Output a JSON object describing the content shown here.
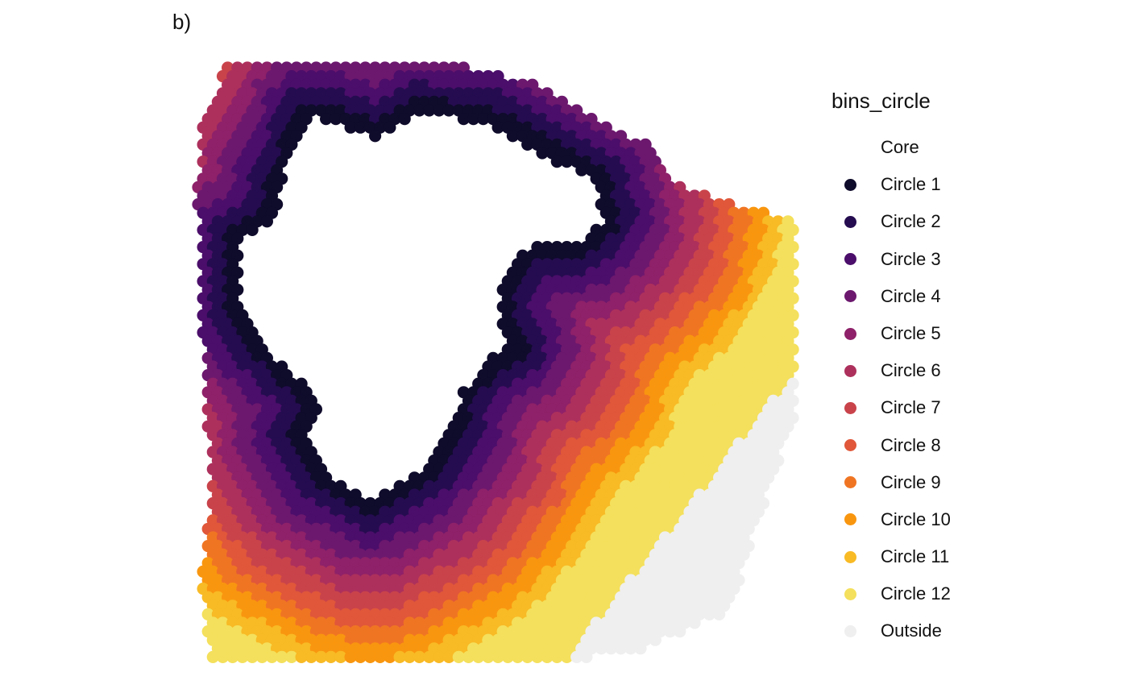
{
  "panel_tag": "b)",
  "chart_data": {
    "type": "scatter",
    "title": "",
    "xlabel": "",
    "ylabel": "",
    "grid": false,
    "axes_visible": false,
    "legend": {
      "title": "bins_circle",
      "placement": "right",
      "entries": [
        {
          "label": "Core",
          "color": "#ffffff"
        },
        {
          "label": "Circle 1",
          "color": "#0f0b2b"
        },
        {
          "label": "Circle 2",
          "color": "#250c50"
        },
        {
          "label": "Circle 3",
          "color": "#4b0e6a"
        },
        {
          "label": "Circle 4",
          "color": "#6c186e"
        },
        {
          "label": "Circle 5",
          "color": "#8e2169"
        },
        {
          "label": "Circle 6",
          "color": "#ad305c"
        },
        {
          "label": "Circle 7",
          "color": "#c9434b"
        },
        {
          "label": "Circle 8",
          "color": "#e0573a"
        },
        {
          "label": "Circle 9",
          "color": "#f07523"
        },
        {
          "label": "Circle 10",
          "color": "#f9960f"
        },
        {
          "label": "Circle 11",
          "color": "#f8ba25"
        },
        {
          "label": "Circle 12",
          "color": "#f4e05c"
        },
        {
          "label": "Outside",
          "color": "#efefef"
        }
      ]
    },
    "series": [
      {
        "name": "Core",
        "region": "core"
      },
      {
        "name": "Circle 1",
        "ring": 1
      },
      {
        "name": "Circle 2",
        "ring": 2
      },
      {
        "name": "Circle 3",
        "ring": 3
      },
      {
        "name": "Circle 4",
        "ring": 4
      },
      {
        "name": "Circle 5",
        "ring": 5
      },
      {
        "name": "Circle 6",
        "ring": 6
      },
      {
        "name": "Circle 7",
        "ring": 7
      },
      {
        "name": "Circle 8",
        "ring": 8
      },
      {
        "name": "Circle 9",
        "ring": 9
      },
      {
        "name": "Circle 10",
        "ring": 10
      },
      {
        "name": "Circle 11",
        "ring": 11
      },
      {
        "name": "Circle 12",
        "ring": 12
      },
      {
        "name": "Outside",
        "region": "outside"
      }
    ]
  }
}
